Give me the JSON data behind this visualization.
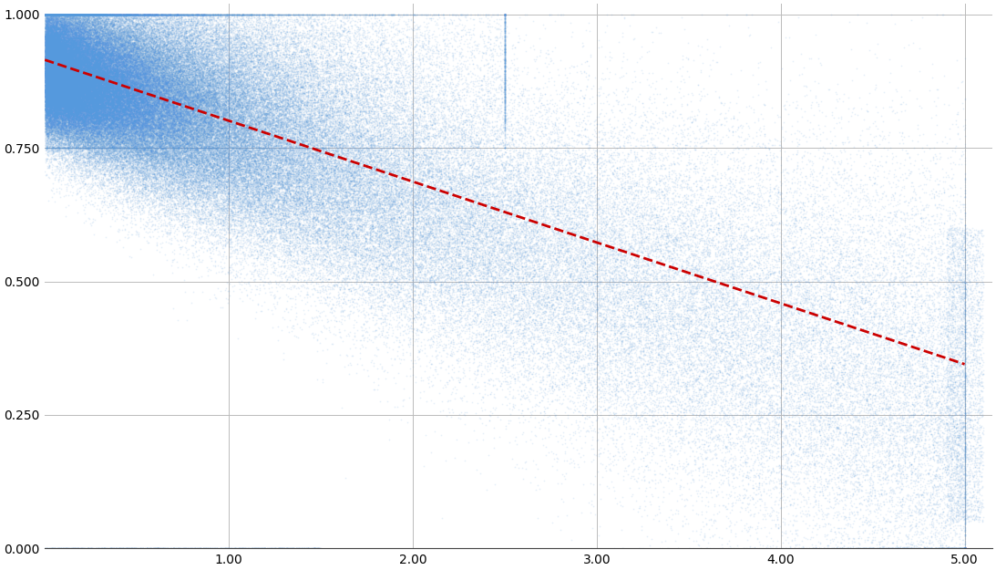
{
  "title": "",
  "xlim": [
    0,
    5.15
  ],
  "ylim": [
    0.0,
    1.02
  ],
  "xticks": [
    1.0,
    2.0,
    3.0,
    4.0,
    5.0
  ],
  "yticks": [
    0.0,
    0.25,
    0.5,
    0.75,
    1.0
  ],
  "xlabel": "",
  "ylabel": "",
  "scatter_color": "#5599dd",
  "scatter_alpha": 0.15,
  "scatter_size": 1.5,
  "line_color": "#cc0000",
  "line_style": "--",
  "line_width": 2.0,
  "n_points": 200000,
  "seed": 42,
  "background_color": "#ffffff",
  "grid_color": "#bbbbbb",
  "grid_lw": 0.7,
  "regression_start_x": 0.0,
  "regression_start_y": 0.915,
  "regression_end_x": 5.0,
  "regression_end_y": 0.345
}
